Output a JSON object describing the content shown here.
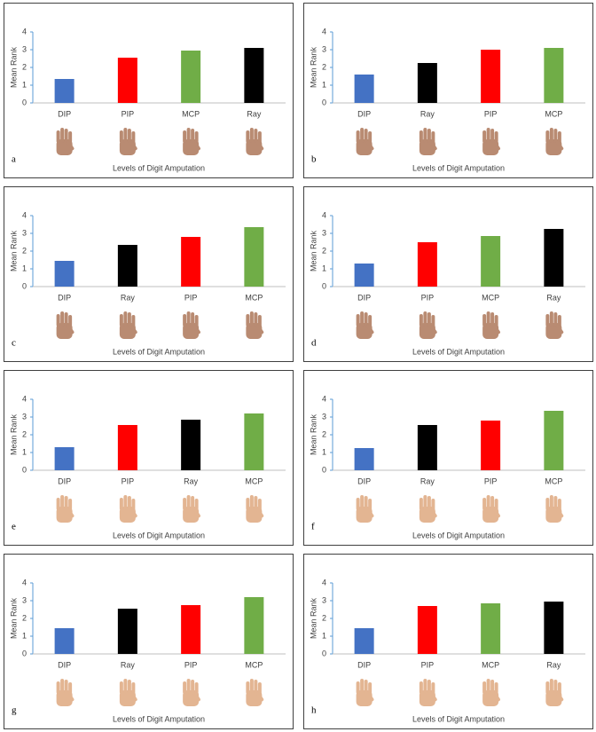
{
  "chart_data": [
    {
      "type": "bar",
      "panel": "a",
      "y_label": "Mean Rank",
      "x_label": "Levels of Digit Amputation",
      "categories": [
        "DIP",
        "PIP",
        "MCP",
        "Ray"
      ],
      "values": [
        1.35,
        2.55,
        2.95,
        3.1
      ],
      "colors": [
        "#4472c4",
        "#ff0000",
        "#70ad47",
        "#000000"
      ],
      "ylim": [
        0,
        4
      ],
      "yticks": [
        0,
        1,
        2,
        3,
        4
      ],
      "grid": false,
      "hand_color": "#b98b72"
    },
    {
      "type": "bar",
      "panel": "b",
      "y_label": "Mean Rank",
      "x_label": "Levels of Digit Amputation",
      "categories": [
        "DIP",
        "Ray",
        "PIP",
        "MCP"
      ],
      "values": [
        1.6,
        2.25,
        3.0,
        3.1
      ],
      "colors": [
        "#4472c4",
        "#000000",
        "#ff0000",
        "#70ad47"
      ],
      "ylim": [
        0,
        4
      ],
      "yticks": [
        0,
        1,
        2,
        3,
        4
      ],
      "grid": false,
      "hand_color": "#b98b72"
    },
    {
      "type": "bar",
      "panel": "c",
      "y_label": "Mean Rank",
      "x_label": "Levels of Digit Amputation",
      "categories": [
        "DIP",
        "Ray",
        "PIP",
        "MCP"
      ],
      "values": [
        1.45,
        2.35,
        2.8,
        3.35
      ],
      "colors": [
        "#4472c4",
        "#000000",
        "#ff0000",
        "#70ad47"
      ],
      "ylim": [
        0,
        4
      ],
      "yticks": [
        0,
        1,
        2,
        3,
        4
      ],
      "grid": false,
      "hand_color": "#b98b72"
    },
    {
      "type": "bar",
      "panel": "d",
      "y_label": "Mean Rank",
      "x_label": "Levels of Digit Amputation",
      "categories": [
        "DIP",
        "PIP",
        "MCP",
        "Ray"
      ],
      "values": [
        1.3,
        2.5,
        2.85,
        3.25
      ],
      "colors": [
        "#4472c4",
        "#ff0000",
        "#70ad47",
        "#000000"
      ],
      "ylim": [
        0,
        4
      ],
      "yticks": [
        0,
        1,
        2,
        3,
        4
      ],
      "grid": false,
      "hand_color": "#b98b72"
    },
    {
      "type": "bar",
      "panel": "e",
      "y_label": "Mean Rank",
      "x_label": "Levels of Digit Amputation",
      "categories": [
        "DIP",
        "PIP",
        "Ray",
        "MCP"
      ],
      "values": [
        1.3,
        2.55,
        2.85,
        3.2
      ],
      "colors": [
        "#4472c4",
        "#ff0000",
        "#000000",
        "#70ad47"
      ],
      "ylim": [
        0,
        4
      ],
      "yticks": [
        0,
        1,
        2,
        3,
        4
      ],
      "grid": false,
      "hand_color": "#e3b592"
    },
    {
      "type": "bar",
      "panel": "f",
      "y_label": "Mean Rank",
      "x_label": "Levels of Digit Amputation",
      "categories": [
        "DIP",
        "Ray",
        "PIP",
        "MCP"
      ],
      "values": [
        1.25,
        2.55,
        2.8,
        3.35
      ],
      "colors": [
        "#4472c4",
        "#000000",
        "#ff0000",
        "#70ad47"
      ],
      "ylim": [
        0,
        4
      ],
      "yticks": [
        0,
        1,
        2,
        3,
        4
      ],
      "grid": false,
      "hand_color": "#e3b592"
    },
    {
      "type": "bar",
      "panel": "g",
      "y_label": "Mean Rank",
      "x_label": "Levels of Digit Amputation",
      "categories": [
        "DIP",
        "Ray",
        "PIP",
        "MCP"
      ],
      "values": [
        1.45,
        2.55,
        2.75,
        3.2
      ],
      "colors": [
        "#4472c4",
        "#000000",
        "#ff0000",
        "#70ad47"
      ],
      "ylim": [
        0,
        4
      ],
      "yticks": [
        0,
        1,
        2,
        3,
        4
      ],
      "grid": false,
      "hand_color": "#e3b592"
    },
    {
      "type": "bar",
      "panel": "h",
      "y_label": "Mean Rank",
      "x_label": "Levels of Digit Amputation",
      "categories": [
        "DIP",
        "PIP",
        "MCP",
        "Ray"
      ],
      "values": [
        1.45,
        2.7,
        2.85,
        2.95
      ],
      "colors": [
        "#4472c4",
        "#ff0000",
        "#70ad47",
        "#000000"
      ],
      "ylim": [
        0,
        4
      ],
      "yticks": [
        0,
        1,
        2,
        3,
        4
      ],
      "grid": false,
      "hand_color": "#e3b592"
    }
  ]
}
